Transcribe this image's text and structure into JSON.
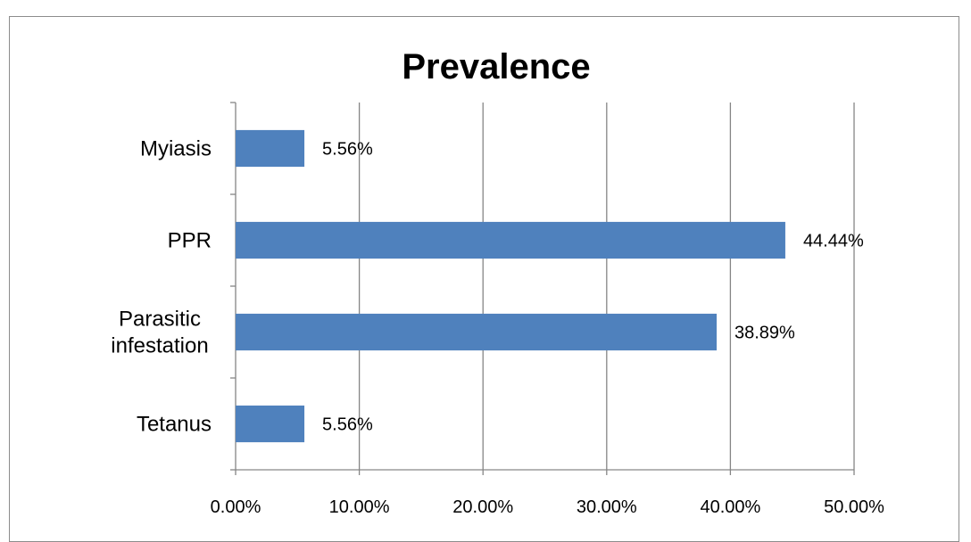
{
  "chart_data": {
    "type": "bar",
    "orientation": "horizontal",
    "title": "Prevalence",
    "categories": [
      "Tetanus",
      "Parasitic infestation",
      "PPR",
      "Myiasis"
    ],
    "values": [
      5.56,
      38.89,
      44.44,
      5.56
    ],
    "data_labels": [
      "5.56%",
      "38.89%",
      "44.44%",
      "5.56%"
    ],
    "x_ticks": [
      "0.00%",
      "10.00%",
      "20.00%",
      "30.00%",
      "40.00%",
      "50.00%"
    ],
    "xlim": [
      0,
      50
    ],
    "xlabel": "",
    "ylabel": "",
    "grid": "vertical major gridlines",
    "legend": "none",
    "bar_color": "#4f81bd",
    "gridline_color": "#868686"
  }
}
